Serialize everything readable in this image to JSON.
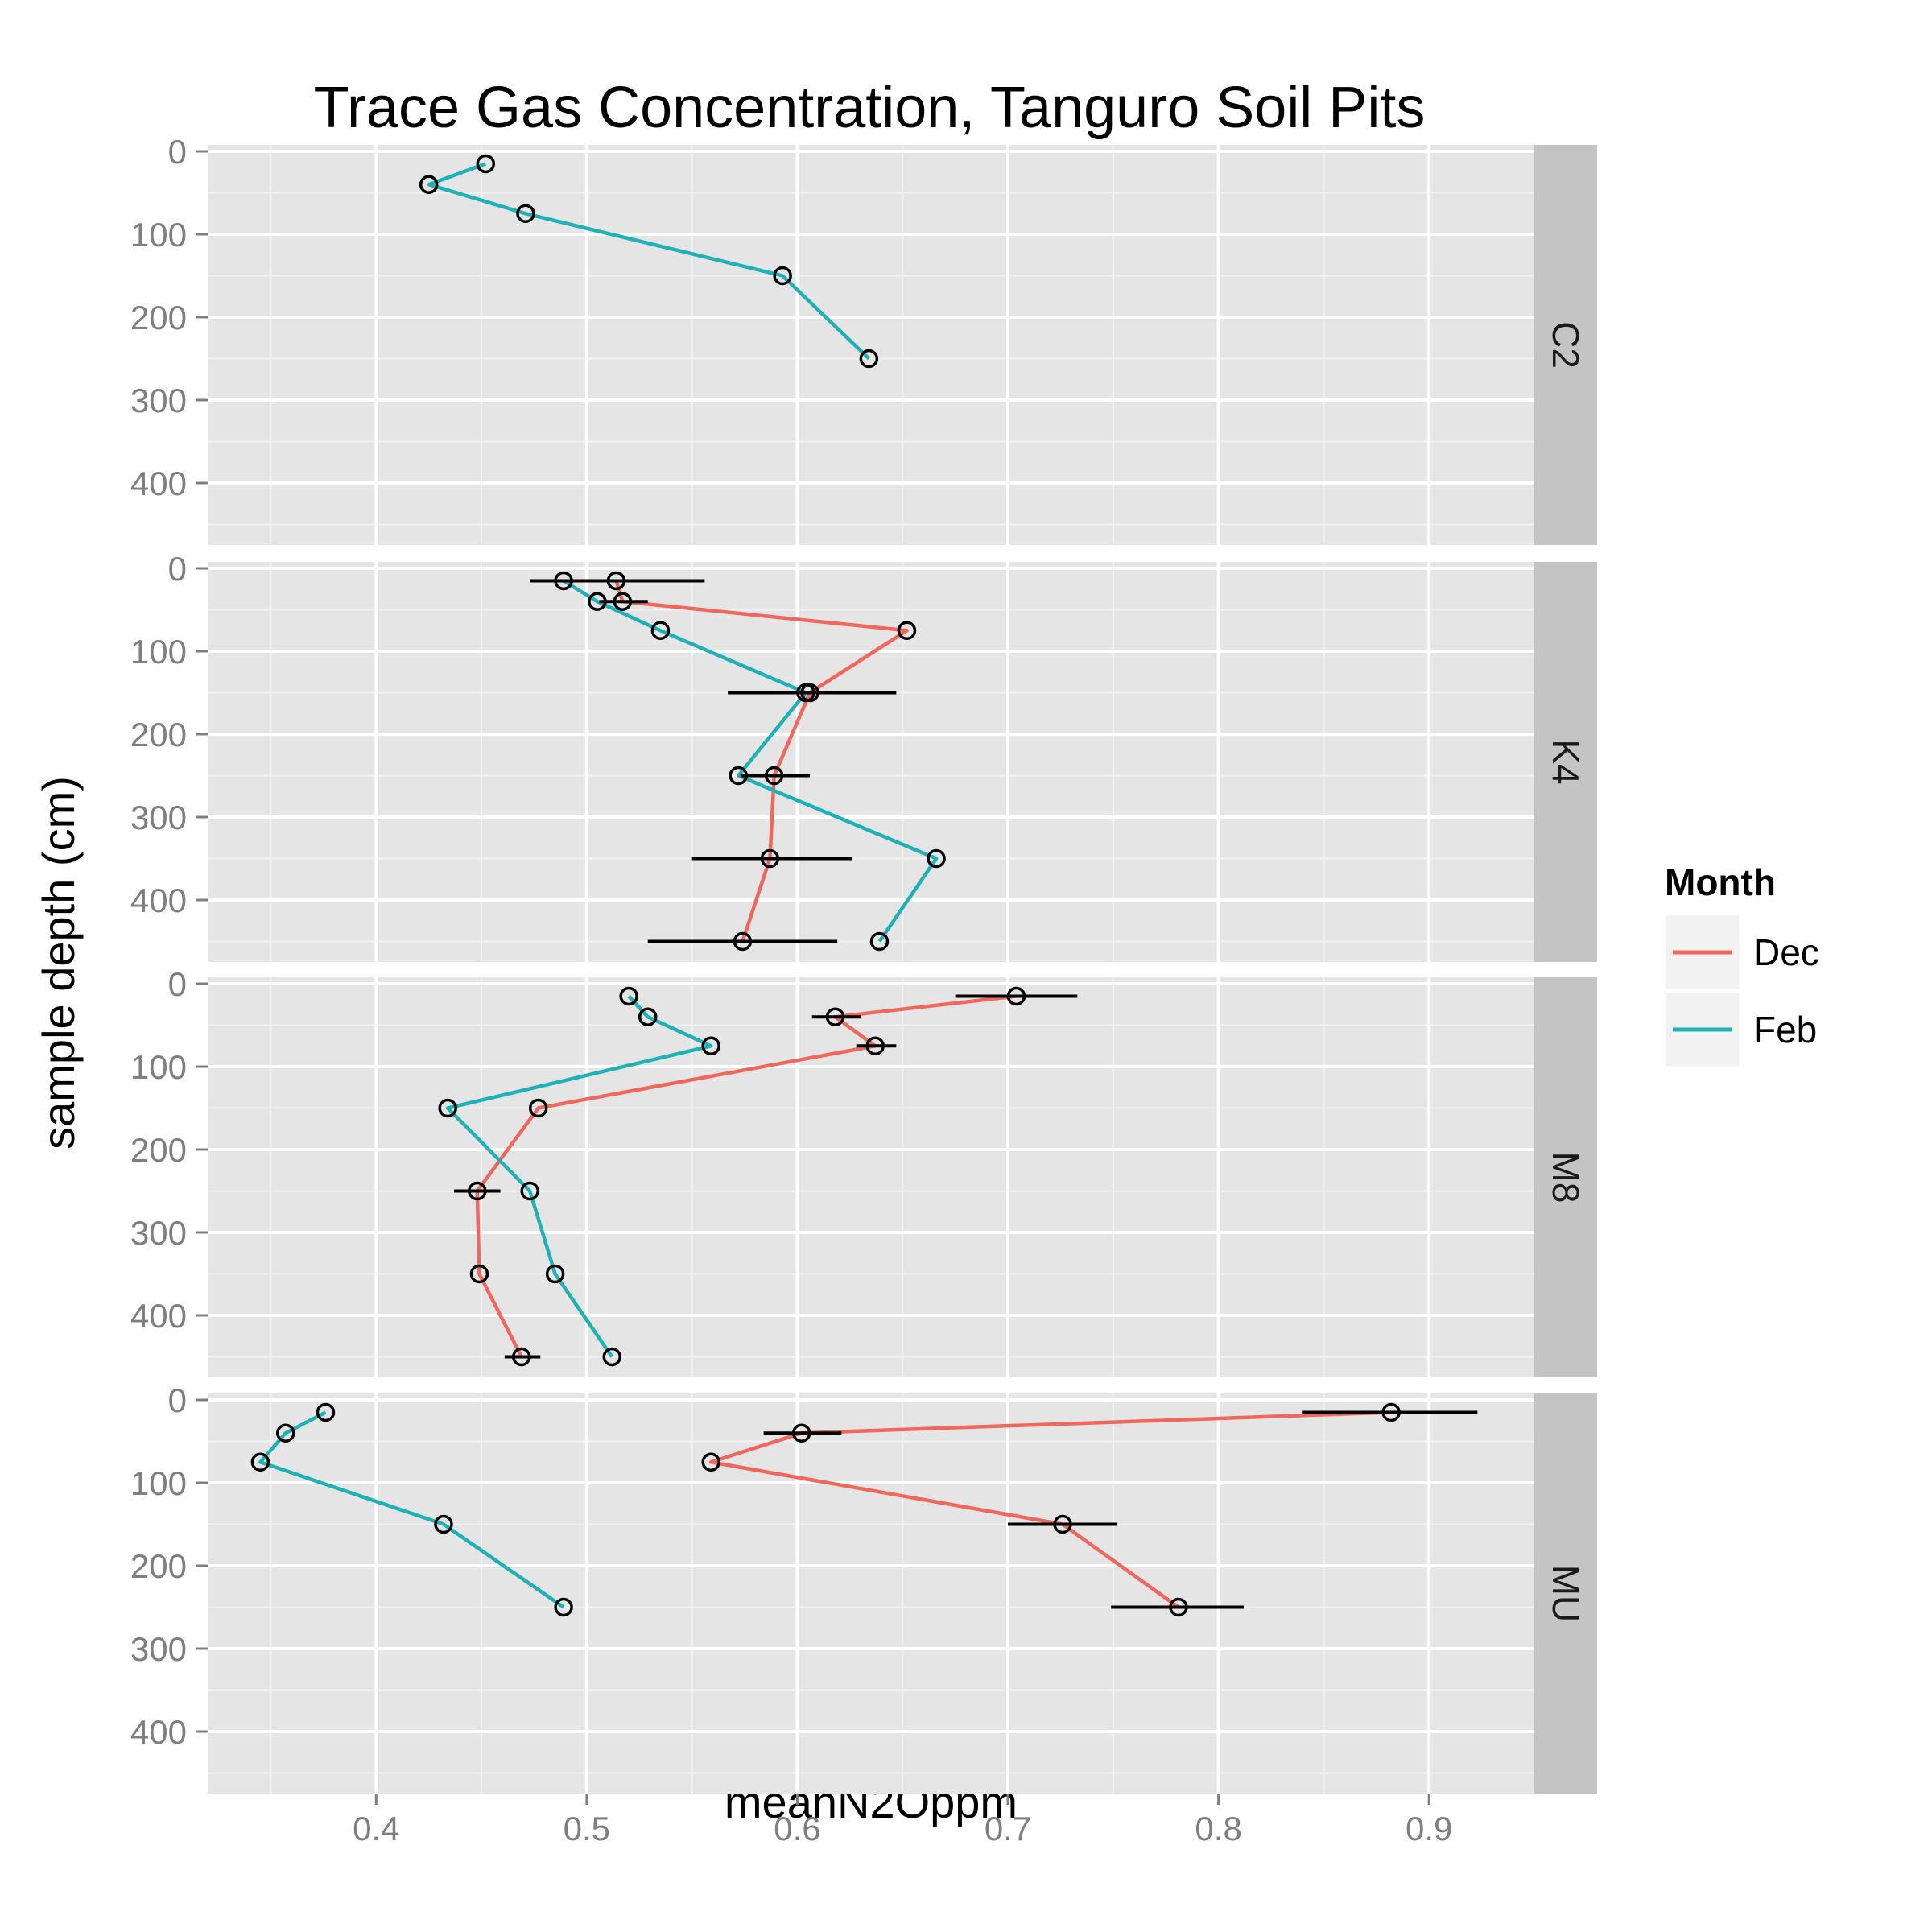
{
  "chart_data": {
    "type": "line",
    "title": "Trace Gas Concentration, Tanguro Soil Pits",
    "xlabel": "meanN2Oppm",
    "ylabel": "sample depth (cm)",
    "xlim": [
      0.32,
      0.95
    ],
    "ylim": [
      0,
      475
    ],
    "x_ticks": [
      0.4,
      0.5,
      0.6,
      0.7,
      0.8,
      0.9
    ],
    "x_tick_labels": [
      "0.4",
      "0.5",
      "0.6",
      "0.7",
      "0.8",
      "0.9"
    ],
    "y_ticks": [
      0,
      100,
      200,
      300,
      400
    ],
    "y_tick_labels": [
      "0",
      "100",
      "200",
      "300",
      "400"
    ],
    "y_reversed": true,
    "grid": true,
    "legend": {
      "title": "Month",
      "position": "right",
      "entries": [
        {
          "label": "Dec",
          "color": "#f0675e"
        },
        {
          "label": "Feb",
          "color": "#1fb1b6"
        }
      ]
    },
    "panels": [
      {
        "label": "C2",
        "series": [
          {
            "month": "Feb",
            "points": [
              {
                "x": 0.452,
                "y": 15
              },
              {
                "x": 0.425,
                "y": 40
              },
              {
                "x": 0.471,
                "y": 75
              },
              {
                "x": 0.593,
                "y": 150
              },
              {
                "x": 0.634,
                "y": 250
              }
            ]
          }
        ]
      },
      {
        "label": "K4",
        "series": [
          {
            "month": "Dec",
            "points": [
              {
                "x": 0.514,
                "y": 15,
                "xmin": 0.473,
                "xmax": 0.556
              },
              {
                "x": 0.517,
                "y": 40,
                "xmin": 0.506,
                "xmax": 0.529
              },
              {
                "x": 0.652,
                "y": 75
              },
              {
                "x": 0.606,
                "y": 150,
                "xmin": 0.567,
                "xmax": 0.647
              },
              {
                "x": 0.589,
                "y": 250,
                "xmin": 0.573,
                "xmax": 0.606
              },
              {
                "x": 0.587,
                "y": 350,
                "xmin": 0.55,
                "xmax": 0.626
              },
              {
                "x": 0.574,
                "y": 450,
                "xmin": 0.529,
                "xmax": 0.619
              }
            ]
          },
          {
            "month": "Feb",
            "points": [
              {
                "x": 0.489,
                "y": 15
              },
              {
                "x": 0.505,
                "y": 40
              },
              {
                "x": 0.535,
                "y": 75
              },
              {
                "x": 0.604,
                "y": 150
              },
              {
                "x": 0.572,
                "y": 250
              },
              {
                "x": 0.666,
                "y": 350
              },
              {
                "x": 0.639,
                "y": 450
              }
            ]
          }
        ]
      },
      {
        "label": "M8",
        "series": [
          {
            "month": "Dec",
            "points": [
              {
                "x": 0.704,
                "y": 15,
                "xmin": 0.675,
                "xmax": 0.733
              },
              {
                "x": 0.618,
                "y": 40,
                "xmin": 0.607,
                "xmax": 0.63
              },
              {
                "x": 0.637,
                "y": 75,
                "xmin": 0.628,
                "xmax": 0.647
              },
              {
                "x": 0.477,
                "y": 150
              },
              {
                "x": 0.448,
                "y": 250,
                "xmin": 0.437,
                "xmax": 0.459
              },
              {
                "x": 0.449,
                "y": 350
              },
              {
                "x": 0.469,
                "y": 450,
                "xmin": 0.461,
                "xmax": 0.478
              }
            ]
          },
          {
            "month": "Feb",
            "points": [
              {
                "x": 0.52,
                "y": 15
              },
              {
                "x": 0.529,
                "y": 40
              },
              {
                "x": 0.559,
                "y": 75
              },
              {
                "x": 0.434,
                "y": 150
              },
              {
                "x": 0.473,
                "y": 250
              },
              {
                "x": 0.485,
                "y": 350
              },
              {
                "x": 0.512,
                "y": 450
              }
            ]
          }
        ]
      },
      {
        "label": "MU",
        "series": [
          {
            "month": "Dec",
            "points": [
              {
                "x": 0.882,
                "y": 15,
                "xmin": 0.84,
                "xmax": 0.923
              },
              {
                "x": 0.602,
                "y": 40,
                "xmin": 0.584,
                "xmax": 0.621
              },
              {
                "x": 0.559,
                "y": 75
              },
              {
                "x": 0.726,
                "y": 150,
                "xmin": 0.7,
                "xmax": 0.752
              },
              {
                "x": 0.781,
                "y": 250,
                "xmin": 0.749,
                "xmax": 0.812
              }
            ]
          },
          {
            "month": "Feb",
            "points": [
              {
                "x": 0.376,
                "y": 15
              },
              {
                "x": 0.357,
                "y": 40
              },
              {
                "x": 0.345,
                "y": 75
              },
              {
                "x": 0.432,
                "y": 150
              },
              {
                "x": 0.489,
                "y": 250
              }
            ]
          }
        ]
      }
    ]
  }
}
